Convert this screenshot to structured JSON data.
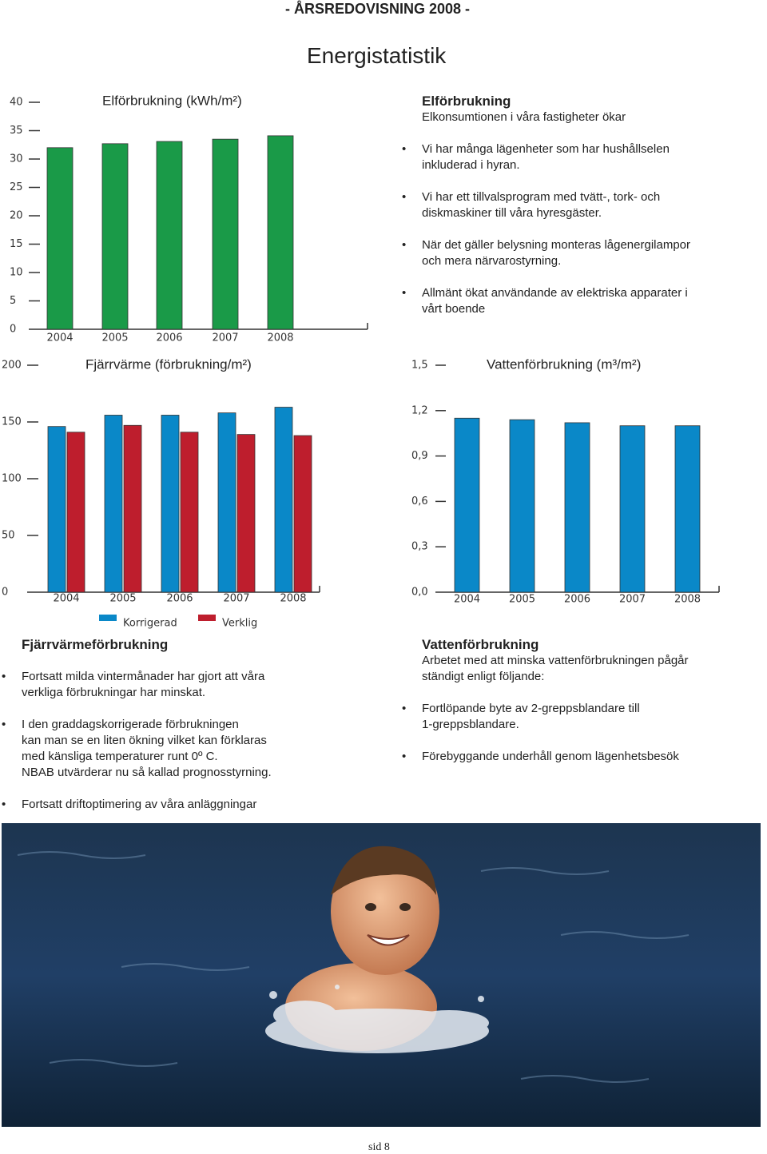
{
  "header": {
    "running_title": "- ÅRSREDOVISNING 2008 -",
    "title": "Energistatistik"
  },
  "chart_data": [
    {
      "type": "bar",
      "title": "Elförbrukning (kWh/m²)",
      "categories": [
        "2004",
        "2005",
        "2006",
        "2007",
        "2008"
      ],
      "values": [
        32.0,
        32.7,
        33.1,
        33.5,
        34.1
      ],
      "color": "#1a9a48",
      "ylim": [
        0,
        40
      ],
      "yticks": [
        0,
        5,
        10,
        15,
        20,
        25,
        30,
        35,
        40
      ]
    },
    {
      "type": "bar",
      "title": "Fjärrvärme (förbrukning/m²)",
      "categories": [
        "2004",
        "2005",
        "2006",
        "2007",
        "2008"
      ],
      "series": [
        {
          "name": "Korrigerad",
          "color": "#0a88c8",
          "values": [
            146,
            156,
            156,
            158,
            163
          ]
        },
        {
          "name": "Verklig",
          "color": "#be1e2d",
          "values": [
            141,
            147,
            141,
            139,
            138
          ]
        }
      ],
      "ylim": [
        0,
        200
      ],
      "yticks": [
        0,
        50,
        100,
        150,
        200
      ]
    },
    {
      "type": "bar",
      "title": "Vattenförbrukning (m³/m²)",
      "categories": [
        "2004",
        "2005",
        "2006",
        "2007",
        "2008"
      ],
      "values": [
        1.15,
        1.14,
        1.12,
        1.1,
        1.1
      ],
      "color": "#0a88c8",
      "ylim": [
        0,
        1.5
      ],
      "yticks": [
        {
          "value": 0,
          "label": "0,0"
        },
        {
          "value": 0.3,
          "label": "0,3"
        },
        {
          "value": 0.6,
          "label": "0,6"
        },
        {
          "value": 0.9,
          "label": "0,9"
        },
        {
          "value": 1.2,
          "label": "1,2"
        },
        {
          "value": 1.5,
          "label": "1,5"
        }
      ]
    }
  ],
  "sections": [
    {
      "heading": "Elförbrukning",
      "intro": [
        "Elkonsumtionen i våra fastigheter ökar"
      ],
      "bullets": [
        [
          "Vi har många lägenheter som har hushållselen",
          "inkluderad i hyran."
        ],
        [
          "Vi har ett tillvalsprogram med tvätt-, tork- och",
          "diskmaskiner till våra hyresgäster."
        ],
        [
          "När det gäller belysning monteras lågenergilampor",
          "och mera närvarostyrning."
        ],
        [
          "Allmänt ökat användande av elektriska apparater i",
          "vårt boende"
        ]
      ]
    },
    {
      "heading": "Fjärrvärmeförbrukning",
      "bullets": [
        [
          "Fortsatt milda vintermånader har gjort att våra",
          "verkliga förbrukningar har minskat."
        ],
        [
          "I den graddagskorrigerade förbrukningen",
          "kan man se en liten ökning vilket kan förklaras",
          "med känsliga temperaturer runt 0º C.",
          "NBAB utvärderar nu så kallad prognosstyrning."
        ],
        [
          "Fortsatt driftoptimering av våra anläggningar"
        ]
      ]
    },
    {
      "heading": "Vattenförbrukning",
      "intro": [
        "Arbetet med att minska vattenförbrukningen pågår",
        "ständigt enligt följande:"
      ],
      "bullets": [
        [
          "Fortlöpande byte av 2-greppsblandare till",
          "1-greppsblandare."
        ],
        [
          "Förebyggande underhåll genom lägenhetsbesök"
        ]
      ]
    }
  ],
  "footer": "sid 8"
}
